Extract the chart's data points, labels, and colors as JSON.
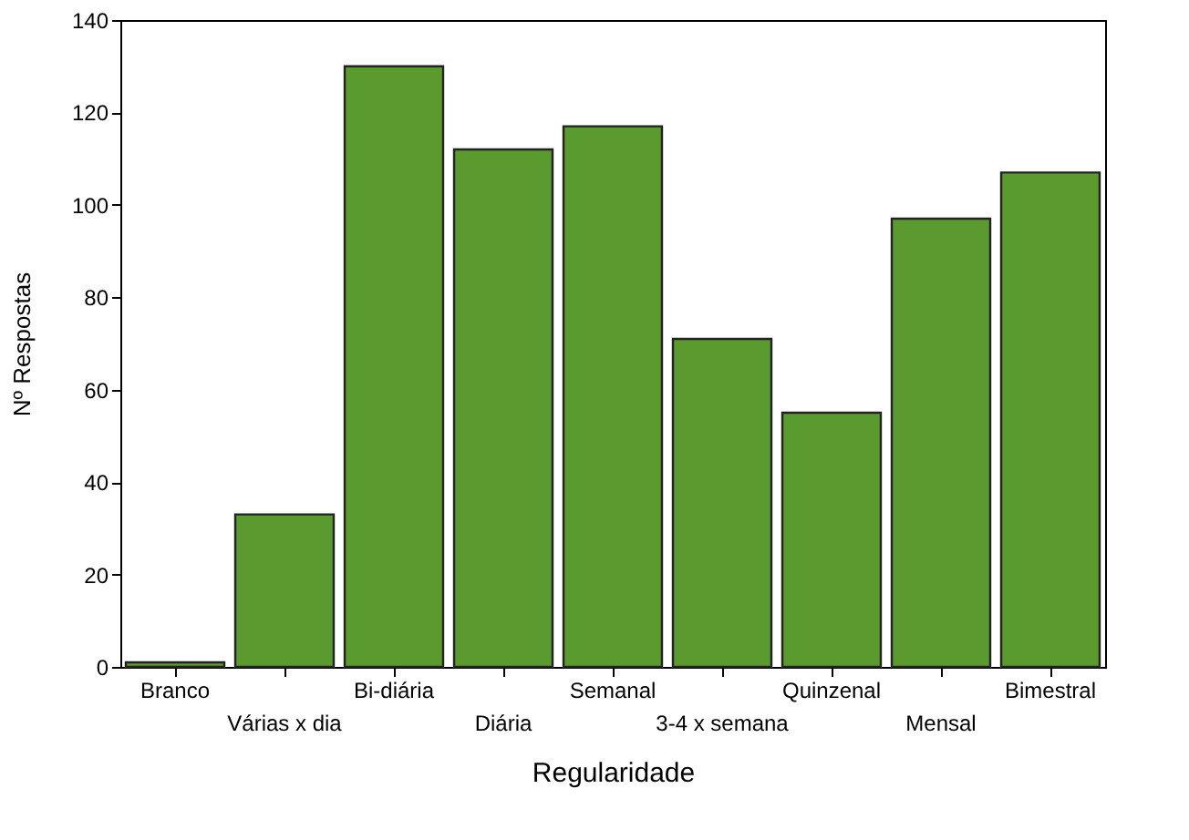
{
  "chart_data": {
    "type": "bar",
    "xlabel": "Regularidade",
    "ylabel": "Nº Respostas",
    "categories": [
      "Branco",
      "Várias x dia",
      "Bi-diária",
      "Diária",
      "Semanal",
      "3-4 x semana",
      "Quinzenal",
      "Mensal",
      "Bimestral"
    ],
    "values": [
      1,
      33,
      130,
      112,
      117,
      71,
      55,
      97,
      107
    ],
    "color": "#5a9a2e",
    "ylim": [
      0,
      140
    ],
    "yticks": [
      0,
      20,
      40,
      60,
      80,
      100,
      120,
      140
    ],
    "grid": false
  }
}
